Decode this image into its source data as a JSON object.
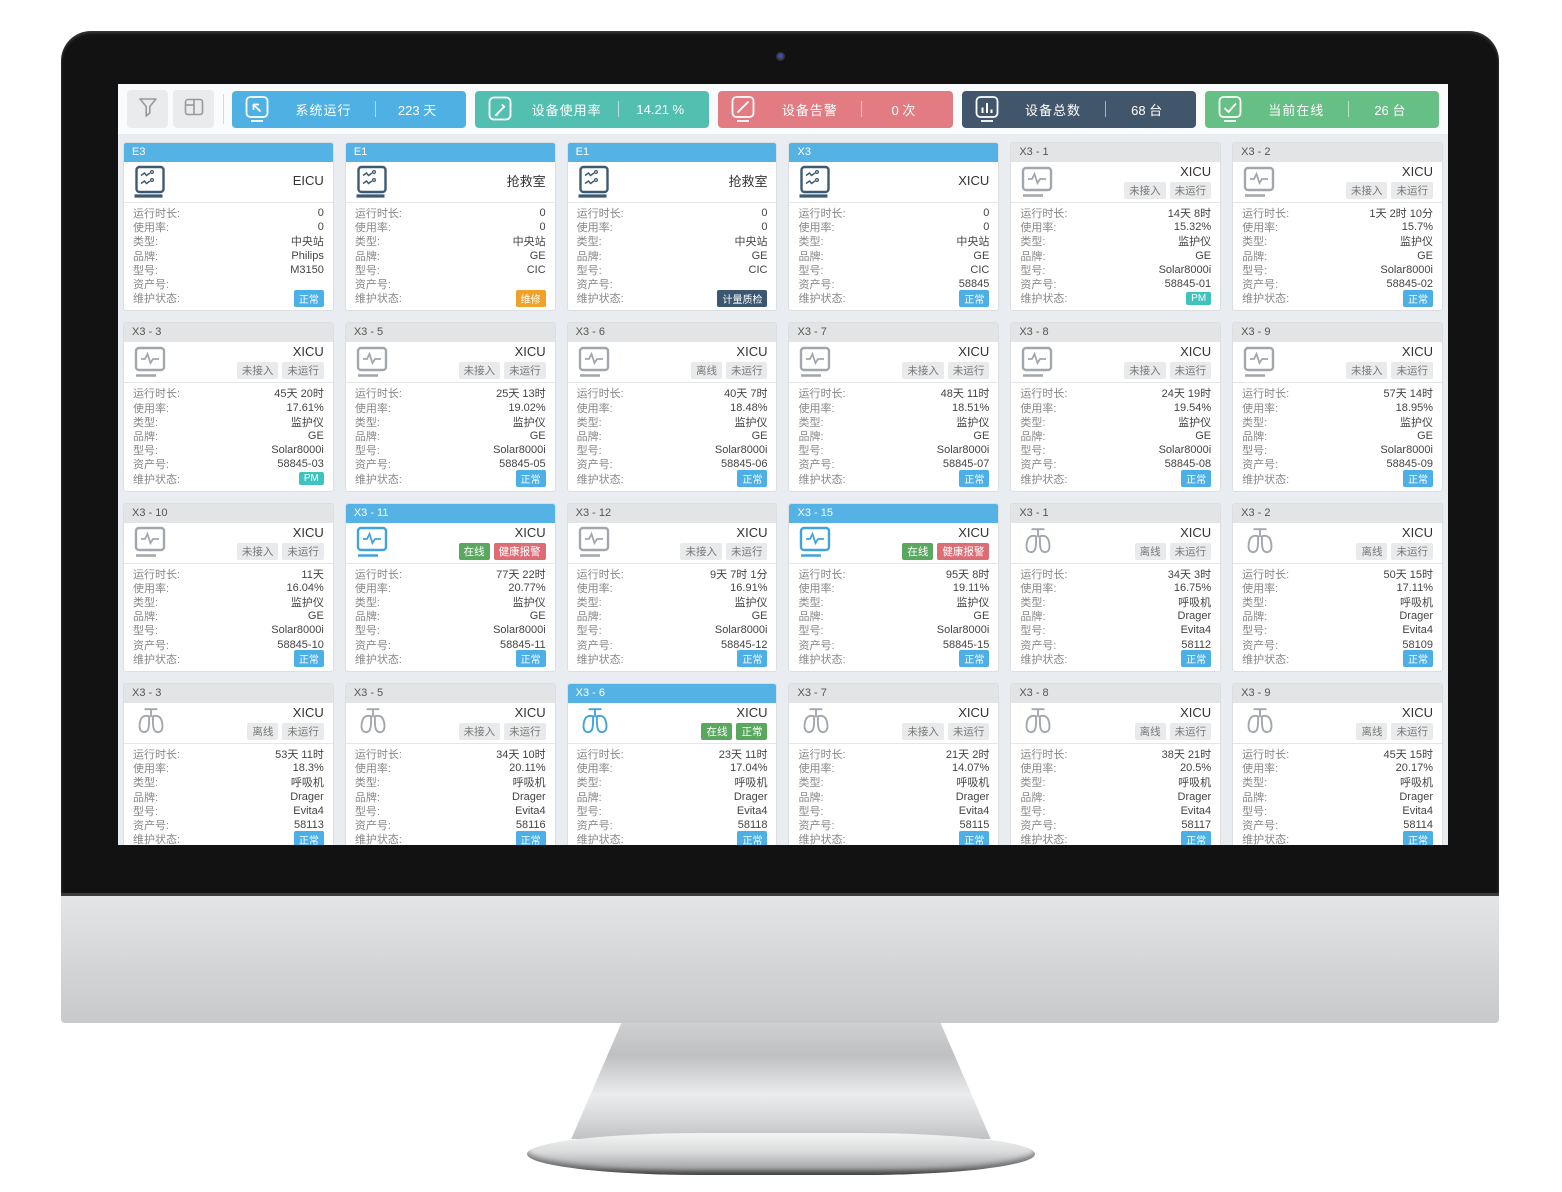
{
  "colors": {
    "icon_navy": "#3d5a73",
    "icon_gray": "#a2a7ad",
    "icon_blue": "#41a3dc",
    "header_blue": "#55b2e4",
    "badge_green": "#5aa85f",
    "badge_red": "#dc6d75",
    "maint_blue": "#4cb0e6",
    "maint_teal": "#3ec3bf",
    "maint_orange": "#efa22a",
    "maint_navy": "#3c5770"
  },
  "toolbar": {
    "stats": [
      {
        "label": "系统运行",
        "value": "223 天",
        "color": "#4fb0e3",
        "icon": "monitor-arrow-icon"
      },
      {
        "label": "设备使用率",
        "value": "14.21 %",
        "color": "#53bfb0",
        "icon": "tablet-edit-icon"
      },
      {
        "label": "设备告警",
        "value": "0 次",
        "color": "#e27c82",
        "icon": "monitor-slash-icon"
      },
      {
        "label": "设备总数",
        "value": "68 台",
        "color": "#42566b",
        "icon": "bar-chart-icon"
      },
      {
        "label": "当前在线",
        "value": "26 台",
        "color": "#66bf85",
        "icon": "monitor-check-icon"
      }
    ]
  },
  "field_labels": {
    "runtime": "运行时长:",
    "usage": "使用率:",
    "type": "类型:",
    "brand": "品牌:",
    "model": "型号:",
    "asset": "资产号:",
    "maintenance": "维护状态:"
  },
  "cards": [
    {
      "id": "E3",
      "header_color": "blue",
      "icon": "central-station",
      "icon_color": "navy",
      "location": "EICU",
      "status_badges": [],
      "runtime": "0",
      "usage": "0",
      "type": "中央站",
      "brand": "Philips",
      "model": "M3150",
      "asset": "",
      "maintenance": {
        "label": "正常",
        "color": "blue"
      }
    },
    {
      "id": "E1",
      "header_color": "blue",
      "icon": "central-station",
      "icon_color": "navy",
      "location": "抢救室",
      "status_badges": [],
      "runtime": "0",
      "usage": "0",
      "type": "中央站",
      "brand": "GE",
      "model": "CIC",
      "asset": "",
      "maintenance": {
        "label": "维修",
        "color": "orange"
      }
    },
    {
      "id": "E1",
      "header_color": "blue",
      "icon": "central-station",
      "icon_color": "navy",
      "location": "抢救室",
      "status_badges": [],
      "runtime": "0",
      "usage": "0",
      "type": "中央站",
      "brand": "GE",
      "model": "CIC",
      "asset": "",
      "maintenance": {
        "label": "计量质检",
        "color": "navy"
      }
    },
    {
      "id": "X3",
      "header_color": "blue",
      "icon": "central-station",
      "icon_color": "navy",
      "location": "XICU",
      "status_badges": [],
      "runtime": "0",
      "usage": "0",
      "type": "中央站",
      "brand": "GE",
      "model": "CIC",
      "asset": "58845",
      "maintenance": {
        "label": "正常",
        "color": "blue"
      }
    },
    {
      "id": "X3 - 1",
      "header_color": "gray",
      "icon": "monitor",
      "icon_color": "gray",
      "location": "XICU",
      "status_badges": [
        {
          "label": "未接入",
          "style": "gray"
        },
        {
          "label": "未运行",
          "style": "gray"
        }
      ],
      "runtime": "14天 8时",
      "usage": "15.32%",
      "type": "监护仪",
      "brand": "GE",
      "model": "Solar8000i",
      "asset": "58845-01",
      "maintenance": {
        "label": "PM",
        "color": "teal"
      }
    },
    {
      "id": "X3 - 2",
      "header_color": "gray",
      "icon": "monitor",
      "icon_color": "gray",
      "location": "XICU",
      "status_badges": [
        {
          "label": "未接入",
          "style": "gray"
        },
        {
          "label": "未运行",
          "style": "gray"
        }
      ],
      "runtime": "1天 2时 10分",
      "usage": "15.7%",
      "type": "监护仪",
      "brand": "GE",
      "model": "Solar8000i",
      "asset": "58845-02",
      "maintenance": {
        "label": "正常",
        "color": "blue"
      }
    },
    {
      "id": "X3 - 3",
      "header_color": "gray",
      "icon": "monitor",
      "icon_color": "gray",
      "location": "XICU",
      "status_badges": [
        {
          "label": "未接入",
          "style": "gray"
        },
        {
          "label": "未运行",
          "style": "gray"
        }
      ],
      "runtime": "45天 20时",
      "usage": "17.61%",
      "type": "监护仪",
      "brand": "GE",
      "model": "Solar8000i",
      "asset": "58845-03",
      "maintenance": {
        "label": "PM",
        "color": "teal"
      }
    },
    {
      "id": "X3 - 5",
      "header_color": "gray",
      "icon": "monitor",
      "icon_color": "gray",
      "location": "XICU",
      "status_badges": [
        {
          "label": "未接入",
          "style": "gray"
        },
        {
          "label": "未运行",
          "style": "gray"
        }
      ],
      "runtime": "25天 13时",
      "usage": "19.02%",
      "type": "监护仪",
      "brand": "GE",
      "model": "Solar8000i",
      "asset": "58845-05",
      "maintenance": {
        "label": "正常",
        "color": "blue"
      }
    },
    {
      "id": "X3 - 6",
      "header_color": "gray",
      "icon": "monitor",
      "icon_color": "gray",
      "location": "XICU",
      "status_badges": [
        {
          "label": "离线",
          "style": "gray"
        },
        {
          "label": "未运行",
          "style": "gray"
        }
      ],
      "runtime": "40天 7时",
      "usage": "18.48%",
      "type": "监护仪",
      "brand": "GE",
      "model": "Solar8000i",
      "asset": "58845-06",
      "maintenance": {
        "label": "正常",
        "color": "blue"
      }
    },
    {
      "id": "X3 - 7",
      "header_color": "gray",
      "icon": "monitor",
      "icon_color": "gray",
      "location": "XICU",
      "status_badges": [
        {
          "label": "未接入",
          "style": "gray"
        },
        {
          "label": "未运行",
          "style": "gray"
        }
      ],
      "runtime": "48天 11时",
      "usage": "18.51%",
      "type": "监护仪",
      "brand": "GE",
      "model": "Solar8000i",
      "asset": "58845-07",
      "maintenance": {
        "label": "正常",
        "color": "blue"
      }
    },
    {
      "id": "X3 - 8",
      "header_color": "gray",
      "icon": "monitor",
      "icon_color": "gray",
      "location": "XICU",
      "status_badges": [
        {
          "label": "未接入",
          "style": "gray"
        },
        {
          "label": "未运行",
          "style": "gray"
        }
      ],
      "runtime": "24天 19时",
      "usage": "19.54%",
      "type": "监护仪",
      "brand": "GE",
      "model": "Solar8000i",
      "asset": "58845-08",
      "maintenance": {
        "label": "正常",
        "color": "blue"
      }
    },
    {
      "id": "X3 - 9",
      "header_color": "gray",
      "icon": "monitor",
      "icon_color": "gray",
      "location": "XICU",
      "status_badges": [
        {
          "label": "未接入",
          "style": "gray"
        },
        {
          "label": "未运行",
          "style": "gray"
        }
      ],
      "runtime": "57天 14时",
      "usage": "18.95%",
      "type": "监护仪",
      "brand": "GE",
      "model": "Solar8000i",
      "asset": "58845-09",
      "maintenance": {
        "label": "正常",
        "color": "blue"
      }
    },
    {
      "id": "X3 - 10",
      "header_color": "gray",
      "icon": "monitor",
      "icon_color": "gray",
      "location": "XICU",
      "status_badges": [
        {
          "label": "未接入",
          "style": "gray"
        },
        {
          "label": "未运行",
          "style": "gray"
        }
      ],
      "runtime": "11天",
      "usage": "16.04%",
      "type": "监护仪",
      "brand": "GE",
      "model": "Solar8000i",
      "asset": "58845-10",
      "maintenance": {
        "label": "正常",
        "color": "blue"
      }
    },
    {
      "id": "X3 - 11",
      "header_color": "blue",
      "icon": "monitor",
      "icon_color": "blue",
      "location": "XICU",
      "status_badges": [
        {
          "label": "在线",
          "style": "green"
        },
        {
          "label": "健康报警",
          "style": "red"
        }
      ],
      "runtime": "77天 22时",
      "usage": "20.77%",
      "type": "监护仪",
      "brand": "GE",
      "model": "Solar8000i",
      "asset": "58845-11",
      "maintenance": {
        "label": "正常",
        "color": "blue"
      }
    },
    {
      "id": "X3 - 12",
      "header_color": "gray",
      "icon": "monitor",
      "icon_color": "gray",
      "location": "XICU",
      "status_badges": [
        {
          "label": "未接入",
          "style": "gray"
        },
        {
          "label": "未运行",
          "style": "gray"
        }
      ],
      "runtime": "9天 7时 1分",
      "usage": "16.91%",
      "type": "监护仪",
      "brand": "GE",
      "model": "Solar8000i",
      "asset": "58845-12",
      "maintenance": {
        "label": "正常",
        "color": "blue"
      }
    },
    {
      "id": "X3 - 15",
      "header_color": "blue",
      "icon": "monitor",
      "icon_color": "blue",
      "location": "XICU",
      "status_badges": [
        {
          "label": "在线",
          "style": "green"
        },
        {
          "label": "健康报警",
          "style": "red"
        }
      ],
      "runtime": "95天 8时",
      "usage": "19.11%",
      "type": "监护仪",
      "brand": "GE",
      "model": "Solar8000i",
      "asset": "58845-15",
      "maintenance": {
        "label": "正常",
        "color": "blue"
      }
    },
    {
      "id": "X3 - 1",
      "header_color": "gray",
      "icon": "lungs",
      "icon_color": "gray",
      "location": "XICU",
      "status_badges": [
        {
          "label": "离线",
          "style": "gray"
        },
        {
          "label": "未运行",
          "style": "gray"
        }
      ],
      "runtime": "34天 3时",
      "usage": "16.75%",
      "type": "呼吸机",
      "brand": "Drager",
      "model": "Evita4",
      "asset": "58112",
      "maintenance": {
        "label": "正常",
        "color": "blue"
      }
    },
    {
      "id": "X3 - 2",
      "header_color": "gray",
      "icon": "lungs",
      "icon_color": "gray",
      "location": "XICU",
      "status_badges": [
        {
          "label": "离线",
          "style": "gray"
        },
        {
          "label": "未运行",
          "style": "gray"
        }
      ],
      "runtime": "50天 15时",
      "usage": "17.11%",
      "type": "呼吸机",
      "brand": "Drager",
      "model": "Evita4",
      "asset": "58109",
      "maintenance": {
        "label": "正常",
        "color": "blue"
      }
    },
    {
      "id": "X3 - 3",
      "header_color": "gray",
      "icon": "lungs",
      "icon_color": "gray",
      "location": "XICU",
      "status_badges": [
        {
          "label": "离线",
          "style": "gray"
        },
        {
          "label": "未运行",
          "style": "gray"
        }
      ],
      "runtime": "53天 11时",
      "usage": "18.3%",
      "type": "呼吸机",
      "brand": "Drager",
      "model": "Evita4",
      "asset": "58113",
      "maintenance": {
        "label": "正常",
        "color": "blue"
      }
    },
    {
      "id": "X3 - 5",
      "header_color": "gray",
      "icon": "lungs",
      "icon_color": "gray",
      "location": "XICU",
      "status_badges": [
        {
          "label": "未接入",
          "style": "gray"
        },
        {
          "label": "未运行",
          "style": "gray"
        }
      ],
      "runtime": "34天 10时",
      "usage": "20.11%",
      "type": "呼吸机",
      "brand": "Drager",
      "model": "Evita4",
      "asset": "58116",
      "maintenance": {
        "label": "正常",
        "color": "blue"
      }
    },
    {
      "id": "X3 - 6",
      "header_color": "blue",
      "icon": "lungs",
      "icon_color": "blue",
      "location": "XICU",
      "status_badges": [
        {
          "label": "在线",
          "style": "green"
        },
        {
          "label": "正常",
          "style": "green"
        }
      ],
      "runtime": "23天 11时",
      "usage": "17.04%",
      "type": "呼吸机",
      "brand": "Drager",
      "model": "Evita4",
      "asset": "58118",
      "maintenance": {
        "label": "正常",
        "color": "blue"
      }
    },
    {
      "id": "X3 - 7",
      "header_color": "gray",
      "icon": "lungs",
      "icon_color": "gray",
      "location": "XICU",
      "status_badges": [
        {
          "label": "未接入",
          "style": "gray"
        },
        {
          "label": "未运行",
          "style": "gray"
        }
      ],
      "runtime": "21天 2时",
      "usage": "14.07%",
      "type": "呼吸机",
      "brand": "Drager",
      "model": "Evita4",
      "asset": "58115",
      "maintenance": {
        "label": "正常",
        "color": "blue"
      }
    },
    {
      "id": "X3 - 8",
      "header_color": "gray",
      "icon": "lungs",
      "icon_color": "gray",
      "location": "XICU",
      "status_badges": [
        {
          "label": "离线",
          "style": "gray"
        },
        {
          "label": "未运行",
          "style": "gray"
        }
      ],
      "runtime": "38天 21时",
      "usage": "20.5%",
      "type": "呼吸机",
      "brand": "Drager",
      "model": "Evita4",
      "asset": "58117",
      "maintenance": {
        "label": "正常",
        "color": "blue"
      }
    },
    {
      "id": "X3 - 9",
      "header_color": "gray",
      "icon": "lungs",
      "icon_color": "gray",
      "location": "XICU",
      "status_badges": [
        {
          "label": "离线",
          "style": "gray"
        },
        {
          "label": "未运行",
          "style": "gray"
        }
      ],
      "runtime": "45天 15时",
      "usage": "20.17%",
      "type": "呼吸机",
      "brand": "Drager",
      "model": "Evita4",
      "asset": "58114",
      "maintenance": {
        "label": "正常",
        "color": "blue"
      }
    }
  ]
}
